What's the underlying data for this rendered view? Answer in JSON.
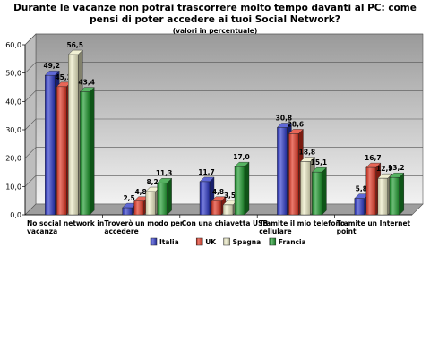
{
  "chart_data": {
    "type": "bar",
    "title": "Durante le vacanze non potrai trascorrere molto tempo davanti al PC: come pensi di poter accedere ai tuoi Social Network?",
    "subtitle": "(valori in percentuale)",
    "categories": [
      [
        "No social network in",
        "vacanza"
      ],
      [
        "Troverò un modo per",
        "accedere"
      ],
      [
        "Con una chiavetta USB"
      ],
      [
        "Tramite il mio telefono",
        "cellulare"
      ],
      [
        "Tramite un Internet",
        "point"
      ]
    ],
    "series": [
      {
        "name": "Italia",
        "values": [
          49.2,
          2.5,
          11.7,
          30.8,
          5.8
        ],
        "color": "#2a36c8",
        "labels": [
          "49,2",
          "2,5",
          "11,7",
          "30,8",
          "5,8"
        ]
      },
      {
        "name": "UK",
        "values": [
          45.2,
          4.8,
          4.8,
          28.6,
          16.7
        ],
        "color": "#e0331f",
        "labels": [
          "45,2",
          "4,8",
          "4,8",
          "28,6",
          "16,7"
        ]
      },
      {
        "name": "Spagna",
        "values": [
          56.5,
          8.2,
          3.5,
          18.8,
          12.9
        ],
        "color": "#ecebc4",
        "labels": [
          "56,5",
          "8,2",
          "3,5",
          "18,8",
          "12,9"
        ]
      },
      {
        "name": "Francia",
        "values": [
          43.4,
          11.3,
          17.0,
          15.1,
          13.2
        ],
        "color": "#1c9a2c",
        "labels": [
          "43,4",
          "11,3",
          "17,0",
          "15,1",
          "13,2"
        ]
      }
    ],
    "ylim": [
      0,
      60
    ],
    "yticks": [
      "0,0",
      "10,0",
      "20,0",
      "30,0",
      "40,0",
      "50,0",
      "60,0"
    ],
    "grid": true,
    "legend": "bottom"
  }
}
